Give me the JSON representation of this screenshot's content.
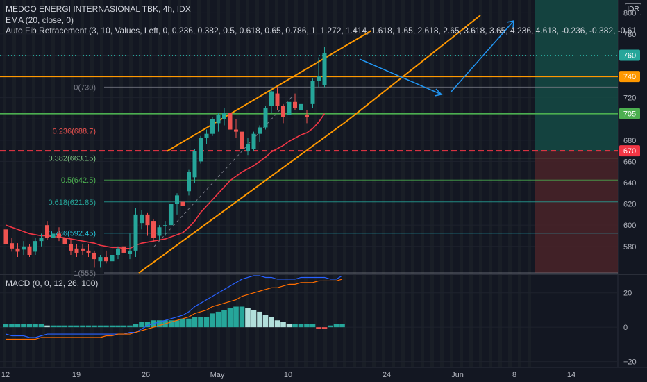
{
  "header": {
    "title": "MEDCO ENERGI INTERNASIONAL TBK, 4h, IDX",
    "ema_label": "EMA (20, close, 0)",
    "fib_label": "Auto Fib Retracement (3, 10, Values, Left, 0, 0.236, 0.382, 0.5, 0.618, 0.65, 0.786, 1, 1.272, 1.414, 1.618, 1.65, 2.618, 2.65, 3.618, 3.65, 4.236, 4.618, -0.236, -0.382, -0.61",
    "currency": "IDR",
    "macd_label": "MACD (0, 0, 12, 26, 100)"
  },
  "colors": {
    "background": "#131722",
    "up": "#26a69a",
    "down": "#ef5350",
    "orange": "#ff9800",
    "green_line": "#4caf50",
    "red_dash": "#f23645",
    "ema": "#f23645",
    "arrow": "#2196f3",
    "profit_zone": "#154a44",
    "loss_zone": "#4a2328"
  },
  "chart_data": [
    {
      "type": "candlestick",
      "title": "MEDCO ENERGI INTERNASIONAL TBK, 4h, IDX",
      "unit": "IDR",
      "x_ticks": [
        "12",
        "19",
        "26",
        "May",
        "10",
        "24",
        "Jun",
        "8",
        "14"
      ],
      "y_ticks": [
        580,
        600,
        620,
        640,
        660,
        680,
        700,
        720,
        740,
        760,
        780,
        800
      ],
      "ylim": [
        555,
        812
      ],
      "candles": [
        {
          "o": 596,
          "h": 604,
          "l": 580,
          "c": 582
        },
        {
          "o": 583,
          "h": 588,
          "l": 575,
          "c": 578
        },
        {
          "o": 578,
          "h": 583,
          "l": 570,
          "c": 575
        },
        {
          "o": 577,
          "h": 585,
          "l": 572,
          "c": 580
        },
        {
          "o": 580,
          "h": 582,
          "l": 570,
          "c": 572
        },
        {
          "o": 575,
          "h": 588,
          "l": 572,
          "c": 585
        },
        {
          "o": 585,
          "h": 592,
          "l": 580,
          "c": 588
        },
        {
          "o": 600,
          "h": 604,
          "l": 586,
          "c": 588
        },
        {
          "o": 588,
          "h": 596,
          "l": 583,
          "c": 592
        },
        {
          "o": 592,
          "h": 598,
          "l": 585,
          "c": 588
        },
        {
          "o": 588,
          "h": 592,
          "l": 578,
          "c": 582
        },
        {
          "o": 582,
          "h": 586,
          "l": 572,
          "c": 576
        },
        {
          "o": 578,
          "h": 582,
          "l": 570,
          "c": 574
        },
        {
          "o": 578,
          "h": 582,
          "l": 572,
          "c": 576
        },
        {
          "o": 576,
          "h": 582,
          "l": 570,
          "c": 574
        },
        {
          "o": 574,
          "h": 576,
          "l": 560,
          "c": 568
        },
        {
          "o": 566,
          "h": 572,
          "l": 560,
          "c": 570
        },
        {
          "o": 570,
          "h": 576,
          "l": 564,
          "c": 566
        },
        {
          "o": 566,
          "h": 574,
          "l": 562,
          "c": 572
        },
        {
          "o": 572,
          "h": 580,
          "l": 568,
          "c": 578
        },
        {
          "o": 580,
          "h": 584,
          "l": 570,
          "c": 574
        },
        {
          "o": 573,
          "h": 592,
          "l": 568,
          "c": 576
        },
        {
          "o": 576,
          "h": 616,
          "l": 570,
          "c": 610
        },
        {
          "o": 602,
          "h": 614,
          "l": 596,
          "c": 610
        },
        {
          "o": 610,
          "h": 612,
          "l": 590,
          "c": 600
        },
        {
          "o": 604,
          "h": 606,
          "l": 584,
          "c": 588
        },
        {
          "o": 590,
          "h": 600,
          "l": 586,
          "c": 598
        },
        {
          "o": 599,
          "h": 604,
          "l": 590,
          "c": 600
        },
        {
          "o": 600,
          "h": 622,
          "l": 598,
          "c": 620
        },
        {
          "o": 620,
          "h": 630,
          "l": 610,
          "c": 628
        },
        {
          "o": 622,
          "h": 626,
          "l": 612,
          "c": 618
        },
        {
          "o": 632,
          "h": 652,
          "l": 628,
          "c": 650
        },
        {
          "o": 645,
          "h": 672,
          "l": 640,
          "c": 670
        },
        {
          "o": 660,
          "h": 684,
          "l": 658,
          "c": 682
        },
        {
          "o": 682,
          "h": 690,
          "l": 676,
          "c": 686
        },
        {
          "o": 686,
          "h": 702,
          "l": 684,
          "c": 700
        },
        {
          "o": 696,
          "h": 706,
          "l": 688,
          "c": 704
        },
        {
          "o": 700,
          "h": 710,
          "l": 694,
          "c": 706
        },
        {
          "o": 706,
          "h": 722,
          "l": 688,
          "c": 690
        },
        {
          "o": 690,
          "h": 700,
          "l": 682,
          "c": 688
        },
        {
          "o": 688,
          "h": 696,
          "l": 668,
          "c": 672
        },
        {
          "o": 670,
          "h": 682,
          "l": 666,
          "c": 676
        },
        {
          "o": 672,
          "h": 688,
          "l": 670,
          "c": 686
        },
        {
          "o": 686,
          "h": 694,
          "l": 678,
          "c": 692
        },
        {
          "o": 692,
          "h": 712,
          "l": 690,
          "c": 710
        },
        {
          "o": 712,
          "h": 728,
          "l": 706,
          "c": 726
        },
        {
          "o": 724,
          "h": 730,
          "l": 708,
          "c": 712
        },
        {
          "o": 712,
          "h": 714,
          "l": 696,
          "c": 702
        },
        {
          "o": 704,
          "h": 726,
          "l": 700,
          "c": 716
        },
        {
          "o": 716,
          "h": 724,
          "l": 708,
          "c": 710
        },
        {
          "o": 708,
          "h": 716,
          "l": 694,
          "c": 714
        },
        {
          "o": 704,
          "h": 708,
          "l": 696,
          "c": 702
        },
        {
          "o": 714,
          "h": 738,
          "l": 710,
          "c": 736
        },
        {
          "o": 736,
          "h": 758,
          "l": 730,
          "c": 740
        },
        {
          "o": 732,
          "h": 768,
          "l": 730,
          "c": 762
        }
      ],
      "ema20": [
        600,
        598,
        596,
        594,
        592,
        591,
        590,
        590,
        589,
        589,
        588,
        587,
        586,
        585,
        584,
        583,
        581,
        580,
        579,
        579,
        578,
        578,
        581,
        583,
        584,
        585,
        586,
        587,
        589,
        591,
        593,
        598,
        604,
        612,
        618,
        624,
        630,
        636,
        642,
        646,
        650,
        653,
        656,
        660,
        664,
        669,
        672,
        675,
        679,
        682,
        685,
        687,
        691,
        697,
        705
      ],
      "horizontal_lines": [
        {
          "name": "resistance",
          "price": 740,
          "label": "740",
          "color": "#ff9800"
        },
        {
          "name": "support",
          "price": 705,
          "label": "705",
          "color": "#4caf50"
        },
        {
          "name": "stop",
          "price": 670,
          "label": "670",
          "color": "#f23645",
          "dashed": true
        },
        {
          "name": "last",
          "price": 760,
          "label": "760",
          "color": "#26a69a",
          "dotted": true
        }
      ],
      "fib_levels": [
        {
          "label": "0(730)",
          "price": 730,
          "color": "#787b86"
        },
        {
          "label": "0.236(688.7)",
          "price": 688.7,
          "color": "#ef5350"
        },
        {
          "label": "0.382(663.15)",
          "price": 663.15,
          "color": "#81c784"
        },
        {
          "label": "0.5(642.5)",
          "price": 642.5,
          "color": "#4caf50"
        },
        {
          "label": "0.618(621.85)",
          "price": 621.85,
          "color": "#26a69a"
        },
        {
          "label": "0.786(592.45)",
          "price": 592.45,
          "color": "#26c6da"
        },
        {
          "label": "1(555)",
          "price": 555,
          "color": "#787b86"
        }
      ],
      "zones": {
        "profit_top": 812,
        "entry": 670,
        "loss_bottom": 555
      }
    },
    {
      "type": "bar",
      "title": "MACD (0, 0, 12, 26, 100)",
      "y_ticks": [
        20,
        0,
        -20
      ],
      "ylim": [
        -23,
        30
      ],
      "histogram": [
        2,
        2,
        2,
        2,
        2,
        2,
        2,
        1,
        1,
        1,
        1,
        1,
        1,
        1,
        1,
        1,
        1,
        1,
        1,
        1,
        1,
        1,
        2,
        3,
        3,
        4,
        4,
        4,
        4,
        4,
        5,
        5,
        6,
        6,
        6,
        8,
        9,
        10,
        11,
        12,
        12,
        11,
        10,
        9,
        7,
        6,
        4,
        3,
        2,
        2,
        2,
        2,
        2,
        -1,
        -1,
        1,
        2,
        2
      ],
      "macd_line": [
        -4,
        -5,
        -5,
        -5,
        -6,
        -6,
        -5,
        -4,
        -4,
        -4,
        -4,
        -4,
        -4,
        -4,
        -4,
        -4,
        -4,
        -4,
        -4,
        -4,
        -4,
        -3,
        -3,
        -1,
        1,
        2,
        3,
        4,
        5,
        6,
        7,
        9,
        12,
        14,
        16,
        18,
        20,
        22,
        24,
        26,
        28,
        29,
        30,
        30,
        29,
        29,
        28,
        28,
        28,
        28,
        29,
        29,
        29,
        29,
        29,
        28,
        28,
        30
      ],
      "signal_line": [
        -7,
        -7,
        -7,
        -7,
        -7,
        -7,
        -6,
        -6,
        -6,
        -6,
        -6,
        -6,
        -6,
        -6,
        -6,
        -6,
        -6,
        -5,
        -5,
        -4,
        -4,
        -4,
        -3,
        -2,
        -1,
        0,
        1,
        2,
        3,
        4,
        5,
        6,
        8,
        9,
        10,
        12,
        13,
        14,
        15,
        16,
        18,
        19,
        20,
        21,
        22,
        23,
        23,
        24,
        25,
        25,
        26,
        26,
        26,
        27,
        27,
        27,
        27,
        28
      ]
    }
  ]
}
